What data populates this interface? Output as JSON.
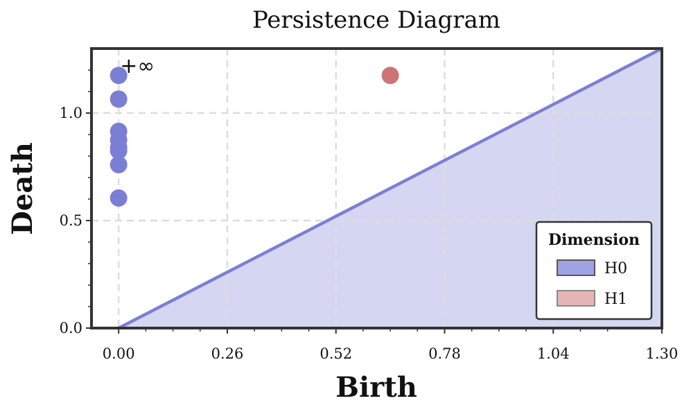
{
  "chart_data": {
    "type": "scatter",
    "title": "Persistence Diagram",
    "xlabel": "Birth",
    "ylabel": "Death",
    "xlim": [
      -0.065,
      1.3
    ],
    "ylim": [
      0.0,
      1.3
    ],
    "xticks": [
      0.0,
      0.26,
      0.52,
      0.78,
      1.04,
      1.3
    ],
    "xtick_labels": [
      "0.00",
      "0.26",
      "0.52",
      "0.78",
      "1.04",
      "1.30"
    ],
    "yticks": [
      0.0,
      0.5,
      1.0
    ],
    "ytick_labels": [
      "0.0",
      "0.5",
      "1.0"
    ],
    "grid": true,
    "diagonal": true,
    "infinity_label": "+∞",
    "infinity_value": 1.175,
    "legend": {
      "title": "Dimension",
      "placement": "bottom-right",
      "entries": [
        "H0",
        "H1"
      ]
    },
    "series": [
      {
        "name": "H0",
        "color": "#7b7fd4",
        "points": [
          {
            "x": 0.0,
            "y": 1.175
          },
          {
            "x": 0.0,
            "y": 1.065
          },
          {
            "x": 0.0,
            "y": 0.915
          },
          {
            "x": 0.0,
            "y": 0.875
          },
          {
            "x": 0.0,
            "y": 0.84
          },
          {
            "x": 0.0,
            "y": 0.825
          },
          {
            "x": 0.0,
            "y": 0.76
          },
          {
            "x": 0.0,
            "y": 0.605
          }
        ]
      },
      {
        "name": "H1",
        "color": "#cd7474",
        "points": [
          {
            "x": 0.65,
            "y": 1.175
          }
        ]
      }
    ],
    "colors": {
      "diagonal_line": "#7b7fd4",
      "diagonal_fill": "#d5d6f1",
      "grid": "#dddddd",
      "frame": "#333333",
      "legend_h0": "#9fa2e3",
      "legend_h1": "#e6b5b5"
    }
  }
}
